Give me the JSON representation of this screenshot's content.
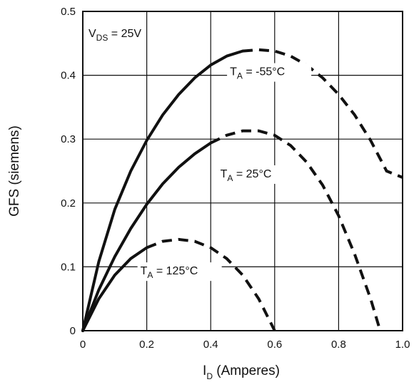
{
  "chart_data": {
    "type": "line",
    "title": "",
    "xlabel": {
      "main": "I",
      "sub": "D",
      "rest": " (Amperes)"
    },
    "ylabel": "GFS (siemens)",
    "xlim": [
      0,
      1.0
    ],
    "ylim": [
      0,
      0.5
    ],
    "x_ticks": [
      "0",
      "0.2",
      "0.4",
      "0.6",
      "0.8",
      "1.0"
    ],
    "y_ticks": [
      "0",
      "0.1",
      "0.2",
      "0.3",
      "0.4",
      "0.5"
    ],
    "grid": true,
    "legend": "none",
    "condition": {
      "main": "V",
      "sub": "DS",
      "rest": " = 25V"
    },
    "line_style": {
      "solid_until_x": [
        0.5,
        0.4,
        0.2
      ],
      "then": "dashed"
    },
    "series": [
      {
        "name": {
          "main": "T",
          "sub": "A",
          "rest": " = -55°C"
        },
        "x": [
          0,
          0.05,
          0.1,
          0.15,
          0.2,
          0.25,
          0.3,
          0.35,
          0.4,
          0.45,
          0.5,
          0.55,
          0.6,
          0.65,
          0.7,
          0.75,
          0.8,
          0.85,
          0.9,
          0.95,
          1.0
        ],
        "y": [
          0,
          0.108,
          0.19,
          0.25,
          0.298,
          0.338,
          0.37,
          0.396,
          0.416,
          0.43,
          0.438,
          0.44,
          0.438,
          0.43,
          0.416,
          0.396,
          0.37,
          0.338,
          0.298,
          0.25,
          0.24
        ]
      },
      {
        "name": {
          "main": "T",
          "sub": "A",
          "rest": " = 25°C"
        },
        "x": [
          0,
          0.05,
          0.1,
          0.15,
          0.2,
          0.25,
          0.3,
          0.35,
          0.4,
          0.45,
          0.5,
          0.55,
          0.6,
          0.65,
          0.7,
          0.75,
          0.8,
          0.85,
          0.9,
          0.93
        ],
        "y": [
          0,
          0.064,
          0.116,
          0.16,
          0.198,
          0.23,
          0.256,
          0.277,
          0.294,
          0.306,
          0.313,
          0.313,
          0.306,
          0.29,
          0.264,
          0.228,
          0.18,
          0.12,
          0.05,
          0
        ]
      },
      {
        "name": {
          "main": "T",
          "sub": "A",
          "rest": " = 125°C"
        },
        "x": [
          0,
          0.05,
          0.1,
          0.15,
          0.2,
          0.25,
          0.3,
          0.35,
          0.4,
          0.45,
          0.5,
          0.55,
          0.6
        ],
        "y": [
          0,
          0.05,
          0.087,
          0.113,
          0.13,
          0.14,
          0.143,
          0.14,
          0.13,
          0.113,
          0.087,
          0.05,
          0
        ]
      }
    ],
    "annotations_anchor": [
      {
        "series": 0,
        "x": 0.46,
        "y": 0.4
      },
      {
        "series": 1,
        "x": 0.43,
        "y": 0.24
      },
      {
        "series": 2,
        "x": 0.18,
        "y": 0.088
      }
    ]
  }
}
